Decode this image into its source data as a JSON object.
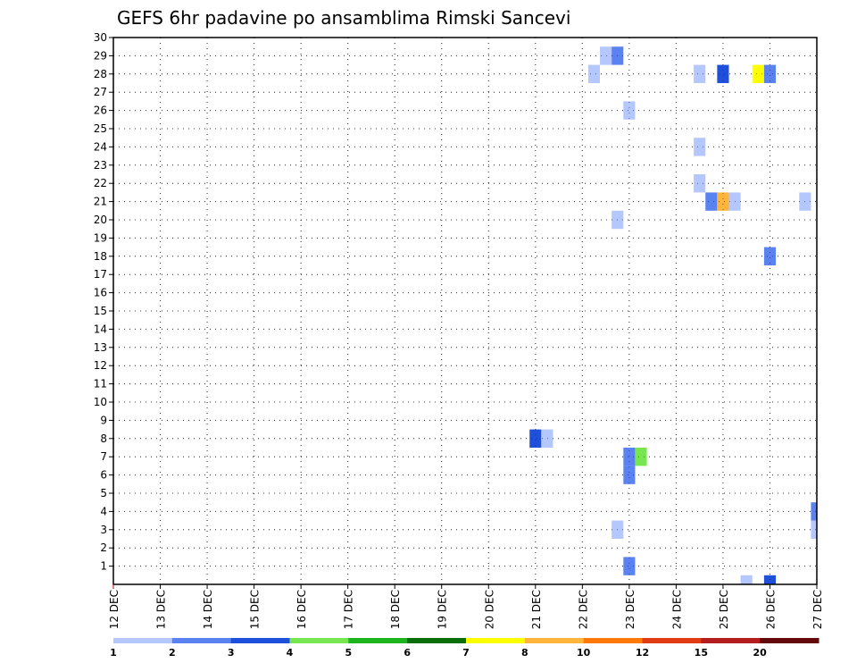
{
  "chart_data": {
    "type": "heatmap",
    "title": "GEFS 6hr padavine po ansamblima Rimski Sancevi",
    "xlabel": "",
    "ylabel": "",
    "x_ticks": [
      "12 DEC",
      "13 DEC",
      "14 DEC",
      "15 DEC",
      "16 DEC",
      "17 DEC",
      "18 DEC",
      "19 DEC",
      "20 DEC",
      "21 DEC",
      "22 DEC",
      "23 DEC",
      "24 DEC",
      "25 DEC",
      "26 DEC",
      "27 DEC"
    ],
    "xlim_days": [
      12,
      27
    ],
    "y_ticks": [
      "1",
      "2",
      "3",
      "4",
      "5",
      "6",
      "7",
      "8",
      "9",
      "10",
      "11",
      "12",
      "13",
      "14",
      "15",
      "16",
      "17",
      "18",
      "19",
      "20",
      "21",
      "22",
      "23",
      "24",
      "25",
      "26",
      "27",
      "28",
      "29",
      "30"
    ],
    "ylim": [
      0,
      30
    ],
    "grid": true,
    "colorbar": {
      "placement": "bottom",
      "labels": [
        "1",
        "2",
        "3",
        "4",
        "5",
        "6",
        "7",
        "8",
        "10",
        "12",
        "15",
        "20"
      ],
      "colors": [
        "#b4c8ff",
        "#5a82f0",
        "#1e50dc",
        "#78e650",
        "#1eb41e",
        "#0a6e0a",
        "#ffff00",
        "#ffb43c",
        "#ff780a",
        "#e13c14",
        "#b41e1e",
        "#640a0a"
      ]
    },
    "cells": [
      {
        "day": 23.0,
        "member": 1,
        "level": 2
      },
      {
        "day": 23.0,
        "member": 6,
        "level": 2
      },
      {
        "day": 23.0,
        "member": 7,
        "level": 2
      },
      {
        "day": 23.25,
        "member": 7,
        "level": 4
      },
      {
        "day": 22.75,
        "member": 3,
        "level": 1
      },
      {
        "day": 21.0,
        "member": 8,
        "level": 3
      },
      {
        "day": 21.25,
        "member": 8,
        "level": 1
      },
      {
        "day": 25.5,
        "member": 0,
        "level": 1
      },
      {
        "day": 26.0,
        "member": 0,
        "level": 3
      },
      {
        "day": 27.0,
        "member": 3,
        "level": 1
      },
      {
        "day": 27.0,
        "member": 4,
        "level": 2
      },
      {
        "day": 26.0,
        "member": 18,
        "level": 2
      },
      {
        "day": 22.75,
        "member": 20,
        "level": 1
      },
      {
        "day": 24.75,
        "member": 21,
        "level": 2
      },
      {
        "day": 25.0,
        "member": 21,
        "level": 8
      },
      {
        "day": 25.25,
        "member": 21,
        "level": 1
      },
      {
        "day": 26.75,
        "member": 21,
        "level": 1
      },
      {
        "day": 24.5,
        "member": 22,
        "level": 1
      },
      {
        "day": 24.5,
        "member": 24,
        "level": 1
      },
      {
        "day": 23.0,
        "member": 26,
        "level": 1
      },
      {
        "day": 22.25,
        "member": 28,
        "level": 1
      },
      {
        "day": 24.5,
        "member": 28,
        "level": 1
      },
      {
        "day": 25.0,
        "member": 28,
        "level": 3
      },
      {
        "day": 25.75,
        "member": 28,
        "level": 7
      },
      {
        "day": 26.0,
        "member": 28,
        "level": 2
      },
      {
        "day": 22.5,
        "member": 29,
        "level": 1
      },
      {
        "day": 22.75,
        "member": 29,
        "level": 2
      }
    ]
  }
}
